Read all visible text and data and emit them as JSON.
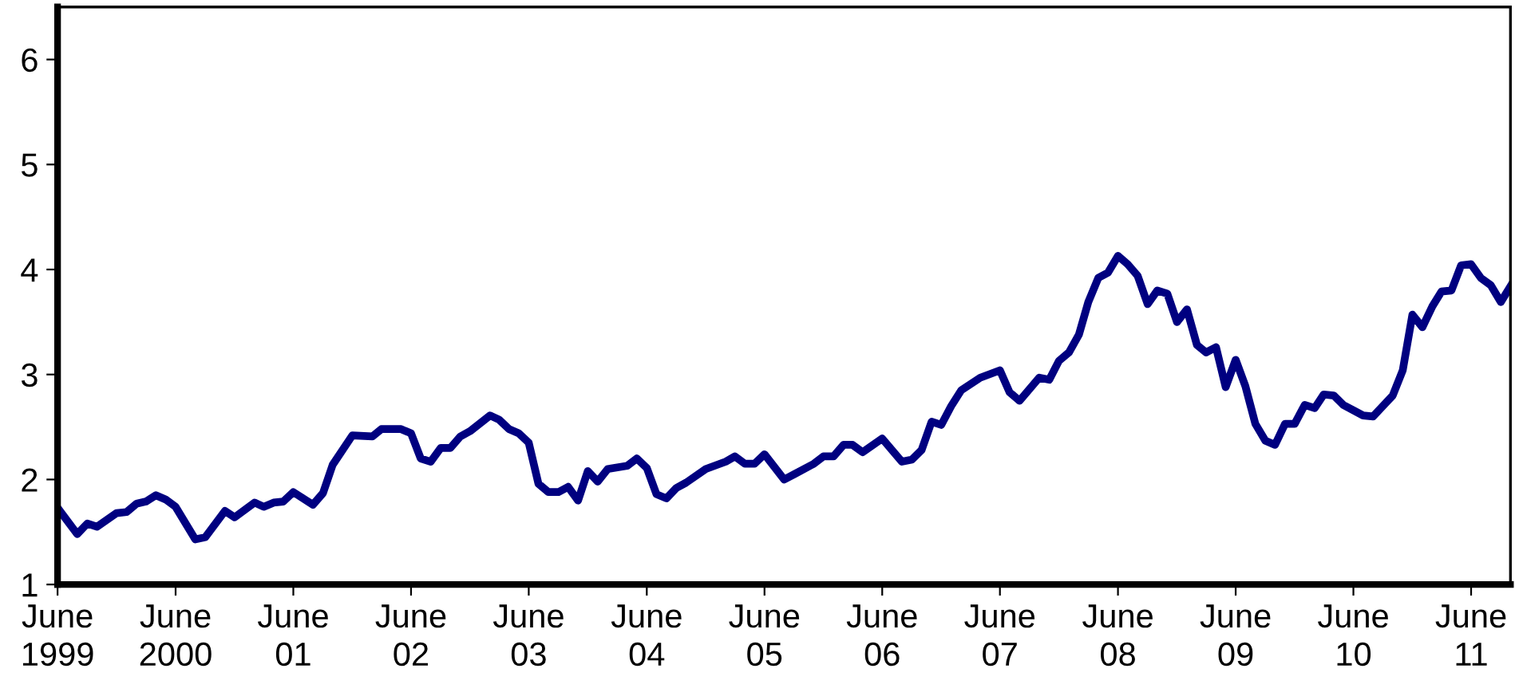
{
  "chart_data": {
    "type": "line",
    "line_style": "solid",
    "marker": "none",
    "grid": false,
    "x": [
      "1999-06",
      "1999-08",
      "1999-09",
      "1999-10",
      "1999-12",
      "2000-01",
      "2000-02",
      "2000-03",
      "2000-04",
      "2000-05",
      "2000-06",
      "2000-08",
      "2000-09",
      "2000-11",
      "2000-12",
      "2001-02",
      "2001-03",
      "2001-04",
      "2001-05",
      "2001-06",
      "2001-08",
      "2001-09",
      "2001-10",
      "2001-12",
      "2002-02",
      "2002-03",
      "2002-05",
      "2002-06",
      "2002-07",
      "2002-08",
      "2002-09",
      "2002-10",
      "2002-11",
      "2002-12",
      "2003-02",
      "2003-03",
      "2003-04",
      "2003-05",
      "2003-06",
      "2003-07",
      "2003-08",
      "2003-09",
      "2003-10",
      "2003-11",
      "2003-12",
      "2004-01",
      "2004-02",
      "2004-04",
      "2004-05",
      "2004-06",
      "2004-07",
      "2004-08",
      "2004-09",
      "2004-10",
      "2004-12",
      "2005-02",
      "2005-03",
      "2005-04",
      "2005-05",
      "2005-06",
      "2005-08",
      "2005-09",
      "2005-11",
      "2005-12",
      "2006-01",
      "2006-02",
      "2006-03",
      "2006-04",
      "2006-06",
      "2006-08",
      "2006-09",
      "2006-10",
      "2006-11",
      "2006-12",
      "2007-01",
      "2007-02",
      "2007-04",
      "2007-06",
      "2007-07",
      "2007-08",
      "2007-10",
      "2007-11",
      "2007-12",
      "2008-01",
      "2008-02",
      "2008-03",
      "2008-04",
      "2008-05",
      "2008-06",
      "2008-07",
      "2008-08",
      "2008-09",
      "2008-10",
      "2008-11",
      "2008-12",
      "2009-01",
      "2009-02",
      "2009-03",
      "2009-04",
      "2009-05",
      "2009-06",
      "2009-07",
      "2009-08",
      "2009-09",
      "2009-10",
      "2009-11",
      "2009-12",
      "2010-01",
      "2010-02",
      "2010-03",
      "2010-04",
      "2010-05",
      "2010-07",
      "2010-08",
      "2010-10",
      "2010-11",
      "2010-12",
      "2011-01",
      "2011-02",
      "2011-03",
      "2011-04",
      "2011-05",
      "2011-06",
      "2011-07",
      "2011-08",
      "2011-09",
      "2011-10"
    ],
    "series": [
      {
        "color": "#000080",
        "values": [
          1.73,
          1.48,
          1.58,
          1.55,
          1.68,
          1.69,
          1.77,
          1.79,
          1.85,
          1.81,
          1.74,
          1.43,
          1.45,
          1.7,
          1.64,
          1.78,
          1.74,
          1.78,
          1.79,
          1.88,
          1.76,
          1.87,
          2.14,
          2.42,
          2.41,
          2.48,
          2.48,
          2.44,
          2.2,
          2.17,
          2.3,
          2.3,
          2.41,
          2.46,
          2.61,
          2.57,
          2.48,
          2.44,
          2.35,
          1.96,
          1.88,
          1.88,
          1.93,
          1.8,
          2.08,
          1.98,
          2.1,
          2.13,
          2.2,
          2.11,
          1.86,
          1.82,
          1.92,
          1.97,
          2.1,
          2.17,
          2.22,
          2.15,
          2.15,
          2.24,
          2.0,
          2.05,
          2.15,
          2.22,
          2.22,
          2.33,
          2.33,
          2.26,
          2.39,
          2.17,
          2.19,
          2.28,
          2.55,
          2.52,
          2.7,
          2.85,
          2.97,
          3.04,
          2.83,
          2.75,
          2.97,
          2.95,
          3.13,
          3.21,
          3.38,
          3.69,
          3.92,
          3.97,
          4.13,
          4.05,
          3.94,
          3.67,
          3.8,
          3.77,
          3.5,
          3.62,
          3.28,
          3.21,
          3.26,
          2.88,
          3.14,
          2.89,
          2.53,
          2.37,
          2.33,
          2.53,
          2.53,
          2.71,
          2.68,
          2.81,
          2.8,
          2.71,
          2.61,
          2.6,
          2.8,
          3.04,
          3.57,
          3.45,
          3.65,
          3.79,
          3.8,
          4.04,
          4.05,
          3.92,
          3.85,
          3.69,
          3.84
        ]
      }
    ],
    "xlim": [
      "1999-06",
      "2011-10"
    ],
    "xticks": [
      {
        "value": "1999-06",
        "label": "June\n1999"
      },
      {
        "value": "2000-06",
        "label": "June\n2000"
      },
      {
        "value": "2001-06",
        "label": "June\n01"
      },
      {
        "value": "2002-06",
        "label": "June\n02"
      },
      {
        "value": "2003-06",
        "label": "June\n03"
      },
      {
        "value": "2004-06",
        "label": "June\n04"
      },
      {
        "value": "2005-06",
        "label": "June\n05"
      },
      {
        "value": "2006-06",
        "label": "June\n06"
      },
      {
        "value": "2007-06",
        "label": "June\n07"
      },
      {
        "value": "2008-06",
        "label": "June\n08"
      },
      {
        "value": "2009-06",
        "label": "June\n09"
      },
      {
        "value": "2010-06",
        "label": "June\n10"
      },
      {
        "value": "2011-06",
        "label": "June\n11"
      }
    ],
    "ylim": [
      1,
      6.5
    ],
    "yticks": [
      1,
      2,
      3,
      4,
      5,
      6
    ]
  }
}
